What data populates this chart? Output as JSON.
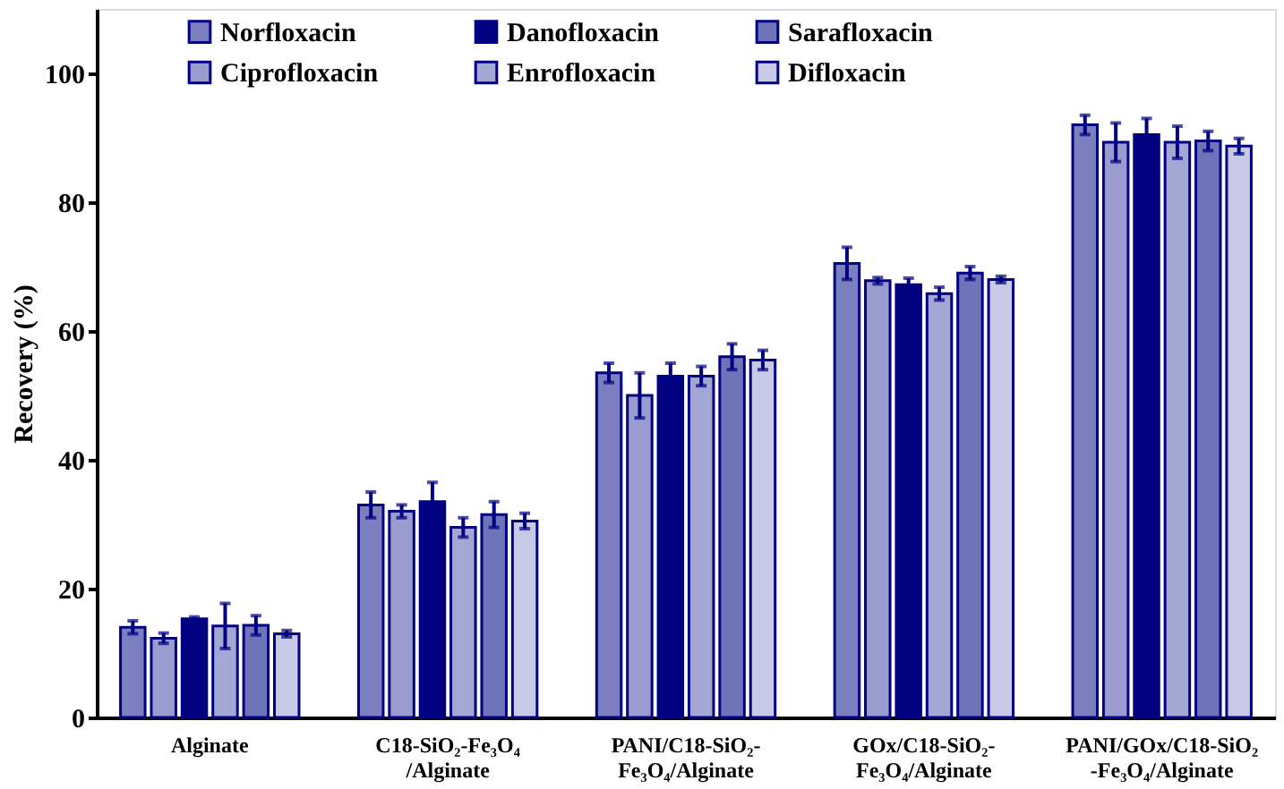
{
  "chart_data": {
    "type": "bar",
    "ylabel": "Recovery (%)",
    "categories": [
      "Alginate",
      "C18-SiO₂-Fe₃O₄\n/Alginate",
      "PANI/C18-SiO₂-\nFe₃O₄/Alginate",
      "GOx/C18-SiO₂-\nFe₃O₄/Alginate",
      "PANI/GOx/C18-SiO₂\n-Fe₃O₄/Alginate"
    ],
    "series": [
      {
        "name": "Norfloxacin",
        "color": "#7b7fc0",
        "values": [
          14,
          33,
          53.5,
          70.5,
          92
        ],
        "errors": [
          1,
          2,
          1.5,
          2.5,
          1.5
        ]
      },
      {
        "name": "Ciprofloxacin",
        "color": "#9a9cd0",
        "values": [
          12.3,
          32,
          50,
          67.8,
          89.3
        ],
        "errors": [
          0.8,
          1,
          3.5,
          0.5,
          3
        ]
      },
      {
        "name": "Danofloxacin",
        "color": "#000080",
        "values": [
          15.3,
          33.5,
          53,
          67.2,
          90.5
        ],
        "errors": [
          0.3,
          3,
          2,
          1,
          2.5
        ]
      },
      {
        "name": "Enrofloxacin",
        "color": "#a4a6d4",
        "values": [
          14.2,
          29.5,
          53,
          65.8,
          89.3
        ],
        "errors": [
          3.5,
          1.5,
          1.5,
          1,
          2.5
        ]
      },
      {
        "name": "Sarafloxacin",
        "color": "#6f73b8",
        "values": [
          14.3,
          31.5,
          56,
          69,
          89.5
        ],
        "errors": [
          1.5,
          2,
          2,
          1,
          1.5
        ]
      },
      {
        "name": "Difloxacin",
        "color": "#c8c9e6",
        "values": [
          13,
          30.5,
          55.5,
          68,
          88.7
        ],
        "errors": [
          0.5,
          1.2,
          1.5,
          0.5,
          1.2
        ]
      }
    ],
    "ylim": [
      0,
      110
    ],
    "yticks": [
      0,
      20,
      40,
      60,
      80,
      100
    ],
    "grid": false,
    "legend": "top"
  }
}
